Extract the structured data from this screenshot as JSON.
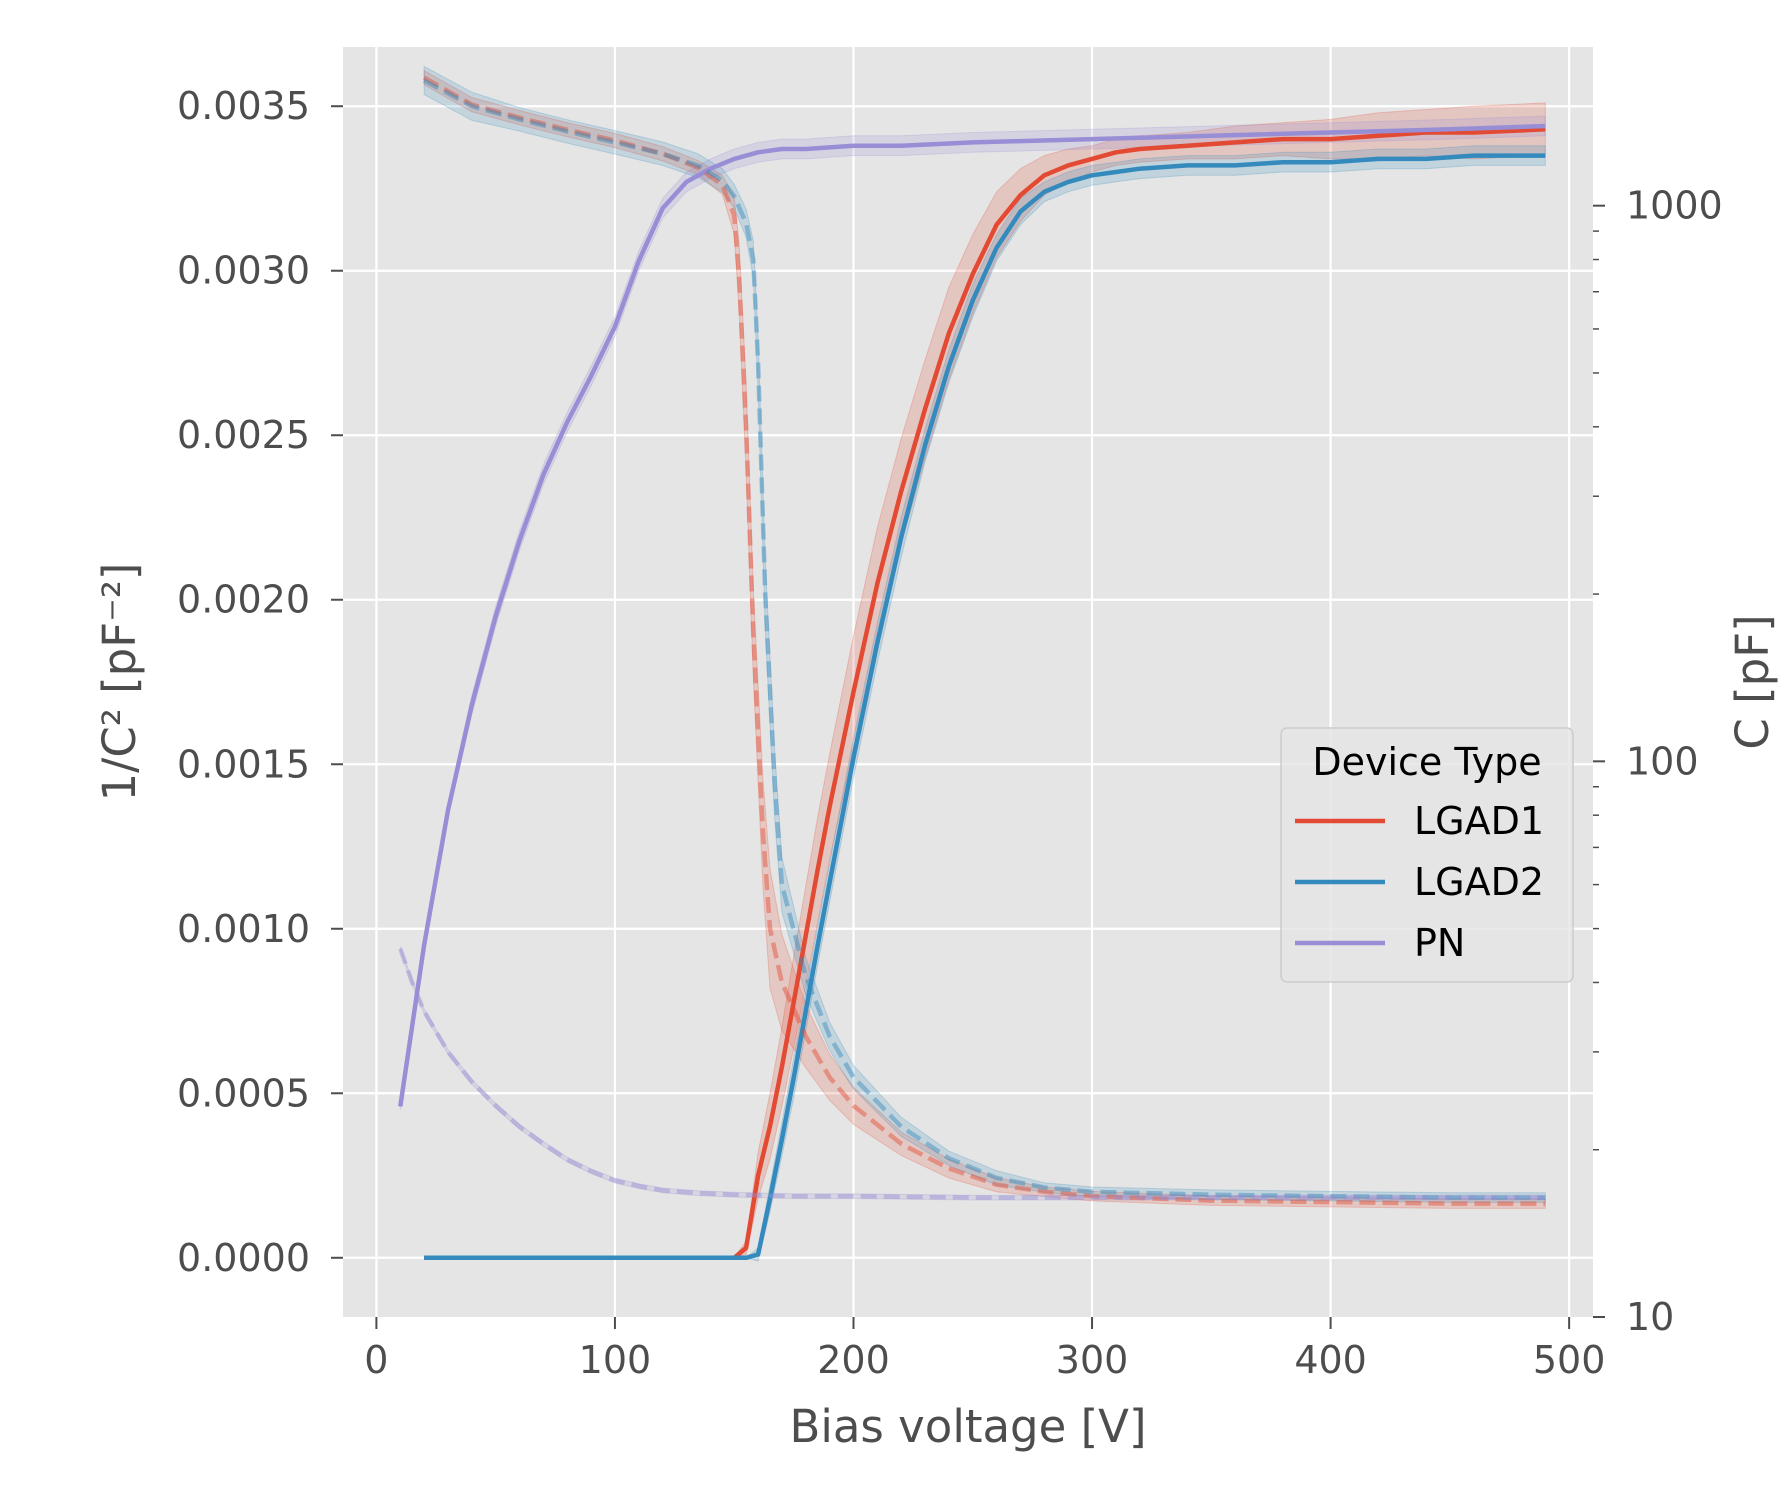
{
  "chart_data": {
    "type": "line",
    "title": "",
    "xlabel": "Bias voltage [V]",
    "ylabel_left": "1/C² [pF⁻²]",
    "ylabel_right": "C [pF]",
    "xlim": [
      -14,
      510
    ],
    "ylim_left": [
      -0.00018,
      0.00368
    ],
    "ylim_right_log": [
      10,
      1930
    ],
    "grid": true,
    "x_ticks": [
      "0",
      "100",
      "200",
      "300",
      "400",
      "500"
    ],
    "x_tick_values": [
      0,
      100,
      200,
      300,
      400,
      500
    ],
    "y_left_ticks": [
      "0.0000",
      "0.0005",
      "0.0010",
      "0.0015",
      "0.0020",
      "0.0025",
      "0.0030",
      "0.0035"
    ],
    "y_left_tick_values": [
      0,
      0.0005,
      0.001,
      0.0015,
      0.002,
      0.0025,
      0.003,
      0.0035
    ],
    "y_right_ticks": [
      "10",
      "100",
      "1000"
    ],
    "y_right_tick_values": [
      10,
      100,
      1000
    ],
    "legend": {
      "title": "Device Type",
      "placement": "center-right",
      "entries": [
        "LGAD1",
        "LGAD2",
        "PN"
      ]
    },
    "series": [
      {
        "name": "LGAD1",
        "color": "#e24a33",
        "axis": "left",
        "style": "solid",
        "x": [
          20,
          150,
          155,
          160,
          165,
          170,
          175,
          180,
          185,
          190,
          200,
          210,
          220,
          230,
          240,
          250,
          260,
          270,
          280,
          290,
          300,
          310,
          320,
          340,
          360,
          380,
          400,
          420,
          440,
          460,
          490
        ],
        "values": [
          0,
          0,
          3e-05,
          0.00025,
          0.0004,
          0.00058,
          0.00078,
          0.00098,
          0.00118,
          0.00137,
          0.00172,
          0.00205,
          0.00233,
          0.00258,
          0.00281,
          0.00299,
          0.00314,
          0.00323,
          0.00329,
          0.00332,
          0.00334,
          0.00336,
          0.00337,
          0.00338,
          0.00339,
          0.0034,
          0.0034,
          0.00341,
          0.00342,
          0.00342,
          0.00343
        ],
        "band_halfwidth": [
          0,
          0,
          2e-05,
          7e-05,
          0.0001,
          0.00012,
          0.00014,
          0.00015,
          0.00016,
          0.00016,
          0.00017,
          0.00017,
          0.00016,
          0.00015,
          0.00014,
          0.00012,
          0.0001,
          8e-05,
          6e-05,
          5e-05,
          4e-05,
          4e-05,
          4e-05,
          4e-05,
          5e-05,
          5e-05,
          6e-05,
          7e-05,
          7e-05,
          8e-05,
          8e-05
        ]
      },
      {
        "name": "LGAD2",
        "color": "#348abd",
        "axis": "left",
        "style": "solid",
        "x": [
          20,
          155,
          160,
          165,
          170,
          175,
          180,
          185,
          190,
          200,
          210,
          220,
          230,
          240,
          250,
          260,
          270,
          280,
          290,
          300,
          310,
          320,
          340,
          360,
          380,
          400,
          420,
          440,
          460,
          490
        ],
        "values": [
          0,
          0,
          1e-05,
          0.00018,
          0.00036,
          0.00055,
          0.00075,
          0.00095,
          0.00114,
          0.00152,
          0.00187,
          0.00219,
          0.00247,
          0.00271,
          0.00291,
          0.00307,
          0.00318,
          0.00324,
          0.00327,
          0.00329,
          0.0033,
          0.00331,
          0.00332,
          0.00332,
          0.00333,
          0.00333,
          0.00334,
          0.00334,
          0.00335,
          0.00335
        ],
        "band_halfwidth": [
          0,
          0,
          2e-05,
          4e-05,
          5e-05,
          6e-05,
          6e-05,
          6e-05,
          6e-05,
          6e-05,
          6e-05,
          6e-05,
          5e-05,
          5e-05,
          5e-05,
          4e-05,
          4e-05,
          3e-05,
          3e-05,
          3e-05,
          3e-05,
          3e-05,
          3e-05,
          3e-05,
          3e-05,
          3e-05,
          3e-05,
          3e-05,
          3e-05,
          3e-05
        ]
      },
      {
        "name": "PN",
        "color": "#988ed5",
        "axis": "left",
        "style": "solid",
        "x": [
          10,
          20,
          30,
          40,
          50,
          60,
          70,
          80,
          90,
          100,
          110,
          120,
          130,
          140,
          150,
          160,
          170,
          180,
          200,
          220,
          250,
          300,
          350,
          400,
          450,
          490
        ],
        "values": [
          0.00046,
          0.00095,
          0.00136,
          0.00168,
          0.00195,
          0.00218,
          0.00238,
          0.00254,
          0.00268,
          0.00283,
          0.00303,
          0.00319,
          0.00327,
          0.00331,
          0.00334,
          0.00336,
          0.00337,
          0.00337,
          0.00338,
          0.00338,
          0.00339,
          0.0034,
          0.00341,
          0.00342,
          0.00343,
          0.00344
        ],
        "band_halfwidth": [
          1e-05,
          2e-05,
          2e-05,
          3e-05,
          3e-05,
          3e-05,
          3e-05,
          3e-05,
          3e-05,
          3e-05,
          3e-05,
          3e-05,
          3e-05,
          3e-05,
          3e-05,
          3e-05,
          3e-05,
          3e-05,
          3e-05,
          3e-05,
          3e-05,
          3e-05,
          3e-05,
          3e-05,
          3e-05,
          3e-05
        ]
      },
      {
        "name": "LGAD1 C",
        "color": "#e24a33",
        "axis": "right",
        "style": "dashed",
        "x": [
          20,
          40,
          60,
          80,
          100,
          120,
          135,
          145,
          150,
          152,
          155,
          158,
          162,
          165,
          170,
          180,
          190,
          200,
          220,
          240,
          260,
          280,
          300,
          350,
          400,
          450,
          490
        ],
        "values": [
          1700,
          1520,
          1440,
          1370,
          1310,
          1240,
          1170,
          1090,
          960,
          750,
          400,
          170,
          75,
          50,
          40,
          32,
          27,
          24,
          20.5,
          18.5,
          17.3,
          16.8,
          16.5,
          16.2,
          16.1,
          16.0,
          16.0
        ],
        "band_factor": [
          1.03,
          1.03,
          1.03,
          1.03,
          1.03,
          1.03,
          1.03,
          1.04,
          1.08,
          1.15,
          1.2,
          1.2,
          1.25,
          1.28,
          1.22,
          1.14,
          1.1,
          1.08,
          1.05,
          1.04,
          1.03,
          1.02,
          1.02,
          1.02,
          1.02,
          1.02,
          1.02
        ]
      },
      {
        "name": "LGAD2 C",
        "color": "#348abd",
        "axis": "right",
        "style": "dashed",
        "x": [
          20,
          40,
          60,
          80,
          100,
          120,
          135,
          145,
          150,
          155,
          158,
          160,
          163,
          167,
          170,
          180,
          190,
          200,
          220,
          240,
          260,
          280,
          300,
          350,
          400,
          450,
          490
        ],
        "values": [
          1680,
          1510,
          1430,
          1360,
          1300,
          1240,
          1180,
          1110,
          1040,
          930,
          800,
          520,
          200,
          90,
          60,
          41,
          32,
          27,
          22,
          19.3,
          17.8,
          17.1,
          16.8,
          16.6,
          16.5,
          16.4,
          16.4
        ],
        "band_factor": [
          1.06,
          1.06,
          1.05,
          1.05,
          1.05,
          1.05,
          1.05,
          1.05,
          1.05,
          1.06,
          1.08,
          1.12,
          1.15,
          1.15,
          1.12,
          1.08,
          1.06,
          1.05,
          1.04,
          1.03,
          1.03,
          1.02,
          1.02,
          1.02,
          1.02,
          1.02,
          1.02
        ]
      },
      {
        "name": "PN C",
        "color": "#988ed5",
        "axis": "right",
        "style": "dashed",
        "x": [
          10,
          15,
          20,
          30,
          40,
          50,
          60,
          70,
          80,
          90,
          100,
          110,
          120,
          135,
          150,
          175,
          200,
          250,
          300,
          350,
          400,
          490
        ],
        "values": [
          46,
          40,
          35.5,
          30,
          26.5,
          24,
          22,
          20.5,
          19.2,
          18.3,
          17.6,
          17.2,
          16.9,
          16.7,
          16.6,
          16.5,
          16.5,
          16.4,
          16.4,
          16.4,
          16.4,
          16.4
        ],
        "band_factor": [
          1.01,
          1.01,
          1.01,
          1.01,
          1.01,
          1.01,
          1.01,
          1.01,
          1.01,
          1.01,
          1.01,
          1.01,
          1.01,
          1.01,
          1.01,
          1.01,
          1.01,
          1.01,
          1.01,
          1.01,
          1.01,
          1.01
        ]
      }
    ]
  }
}
